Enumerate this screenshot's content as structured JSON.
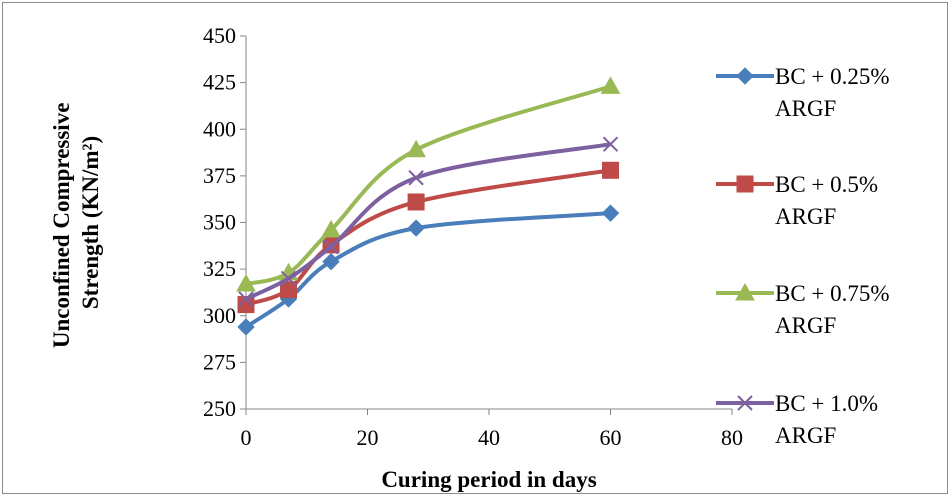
{
  "chart_data": {
    "type": "line",
    "title": "",
    "xlabel": "Curing period in days",
    "ylabel_line1": "Unconfined Compressive",
    "ylabel_line2": "Strength (KN/m²)",
    "xlim": [
      0,
      80
    ],
    "ylim": [
      250,
      450
    ],
    "xticks": [
      0,
      20,
      40,
      60,
      80
    ],
    "yticks": [
      250,
      275,
      300,
      325,
      350,
      375,
      400,
      425,
      450
    ],
    "grid": false,
    "legend_position": "right",
    "x": [
      0,
      7,
      14,
      28,
      60
    ],
    "series": [
      {
        "name_line1": "BC + 0.25%",
        "name_line2": "ARGF",
        "marker": "diamond",
        "color": "#4a7ebb",
        "values": [
          294,
          309,
          329,
          347,
          355
        ]
      },
      {
        "name_line1": "BC + 0.5%",
        "name_line2": "ARGF",
        "marker": "square",
        "color": "#be4b48",
        "values": [
          306,
          314,
          338,
          361,
          378
        ]
      },
      {
        "name_line1": "BC + 0.75%",
        "name_line2": "ARGF",
        "marker": "triangle",
        "color": "#98b954",
        "values": [
          317,
          323,
          346,
          389,
          423
        ]
      },
      {
        "name_line1": "BC + 1.0%",
        "name_line2": "ARGF",
        "marker": "cross",
        "color": "#7d60a0",
        "values": [
          309,
          320,
          337,
          374,
          392
        ]
      }
    ]
  }
}
